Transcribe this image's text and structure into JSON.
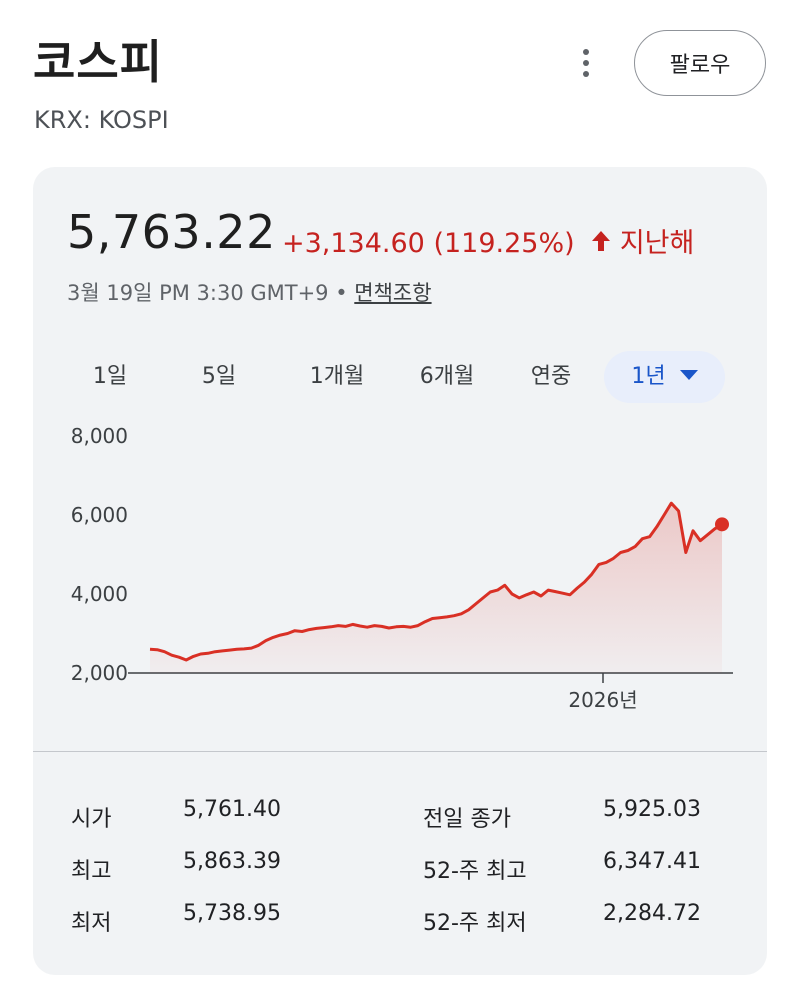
{
  "header": {
    "title": "코스피",
    "subtitle": "KRX: KOSPI",
    "follow_label": "팔로우",
    "more_icon": "more-vert-icon"
  },
  "quote": {
    "price": "5,763.22",
    "change": "+3,134.60 (119.25%)",
    "period": "지난해",
    "direction": "up",
    "change_color": "#c5221f",
    "timestamp": "3월 19일 PM 3:30 GMT+9 •",
    "disclaimer_label": "면책조항"
  },
  "range_tabs": [
    {
      "label": "1일",
      "active": false
    },
    {
      "label": "5일",
      "active": false
    },
    {
      "label": "1개월",
      "active": false
    },
    {
      "label": "6개월",
      "active": false
    },
    {
      "label": "연중",
      "active": false
    },
    {
      "label": "1년",
      "active": true
    }
  ],
  "chart_data": {
    "type": "area",
    "y_ticks": [
      "8,000",
      "6,000",
      "4,000",
      "2,000"
    ],
    "ylim": [
      2000,
      8000
    ],
    "x_tick_label": "2026년",
    "line_color": "#d93025",
    "values": [
      2600,
      2590,
      2540,
      2450,
      2400,
      2330,
      2420,
      2480,
      2500,
      2540,
      2560,
      2580,
      2600,
      2610,
      2630,
      2700,
      2820,
      2900,
      2960,
      3000,
      3070,
      3050,
      3100,
      3130,
      3150,
      3170,
      3200,
      3180,
      3230,
      3190,
      3160,
      3200,
      3180,
      3140,
      3170,
      3180,
      3160,
      3200,
      3300,
      3380,
      3400,
      3420,
      3450,
      3500,
      3600,
      3750,
      3900,
      4050,
      4100,
      4220,
      4000,
      3900,
      3980,
      4050,
      3950,
      4100,
      4060,
      4020,
      3980,
      4150,
      4300,
      4500,
      4750,
      4800,
      4900,
      5050,
      5100,
      5200,
      5400,
      5450,
      5700,
      6000,
      6300,
      6100,
      5050,
      5600,
      5350,
      5500,
      5650,
      5763.22
    ]
  },
  "stats": {
    "left": [
      {
        "label": "시가",
        "value": "5,761.40"
      },
      {
        "label": "최고",
        "value": "5,863.39"
      },
      {
        "label": "최저",
        "value": "5,738.95"
      }
    ],
    "right": [
      {
        "label": "전일 종가",
        "value": "5,925.03"
      },
      {
        "label": "52-주 최고",
        "value": "6,347.41"
      },
      {
        "label": "52-주 최저",
        "value": "2,284.72"
      }
    ]
  }
}
